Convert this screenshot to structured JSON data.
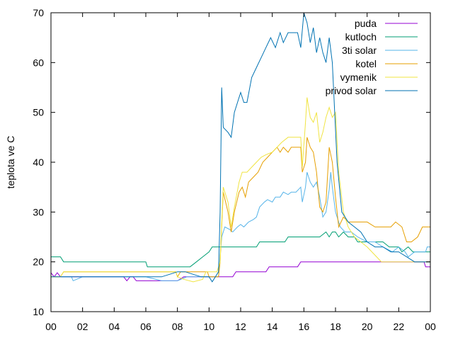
{
  "chart_data": {
    "type": "line",
    "title": "",
    "xlabel": "",
    "ylabel": "teplota ve C",
    "xlim": [
      0,
      24
    ],
    "ylim": [
      10,
      70
    ],
    "grid": false,
    "legend_position": "top-right",
    "x_ticks": [
      "00",
      "02",
      "04",
      "06",
      "08",
      "10",
      "12",
      "14",
      "16",
      "18",
      "20",
      "22",
      "00"
    ],
    "y_ticks": [
      "10",
      "20",
      "30",
      "40",
      "50",
      "60",
      "70"
    ],
    "series": [
      {
        "name": "puda",
        "color": "#9400d3",
        "points": [
          [
            0,
            17.8
          ],
          [
            0.2,
            17.0
          ],
          [
            0.4,
            17.8
          ],
          [
            0.6,
            17.0
          ],
          [
            1,
            17.0
          ],
          [
            3,
            17.0
          ],
          [
            4.6,
            17.0
          ],
          [
            4.8,
            16.2
          ],
          [
            5,
            17.0
          ],
          [
            5.2,
            17.0
          ],
          [
            5.4,
            16.2
          ],
          [
            6,
            16.2
          ],
          [
            7,
            16.2
          ],
          [
            8,
            16.2
          ],
          [
            8.4,
            17.0
          ],
          [
            9,
            17.0
          ],
          [
            10,
            17.0
          ],
          [
            11,
            17.0
          ],
          [
            11.5,
            17.0
          ],
          [
            11.7,
            18.0
          ],
          [
            13,
            18.0
          ],
          [
            13.6,
            18.0
          ],
          [
            13.8,
            19.0
          ],
          [
            15,
            19.0
          ],
          [
            15.6,
            19.0
          ],
          [
            15.8,
            20.0
          ],
          [
            18,
            20.0
          ],
          [
            20,
            20.0
          ],
          [
            21.7,
            20.0
          ],
          [
            23.6,
            20.0
          ],
          [
            23.7,
            19.0
          ],
          [
            24,
            19.0
          ]
        ]
      },
      {
        "name": "kutloch",
        "color": "#009e73",
        "points": [
          [
            0,
            21.0
          ],
          [
            0.6,
            21.0
          ],
          [
            0.8,
            20.0
          ],
          [
            5,
            20.0
          ],
          [
            6,
            20.0
          ],
          [
            6.1,
            19.0
          ],
          [
            8,
            19.0
          ],
          [
            8.8,
            19.0
          ],
          [
            9.2,
            20.0
          ],
          [
            9.6,
            21.0
          ],
          [
            10,
            22.0
          ],
          [
            10.2,
            23.0
          ],
          [
            11,
            23.0
          ],
          [
            12,
            23.0
          ],
          [
            13,
            23.0
          ],
          [
            13.2,
            24.0
          ],
          [
            14,
            24.0
          ],
          [
            14.8,
            24.0
          ],
          [
            15,
            25.0
          ],
          [
            16,
            25.0
          ],
          [
            17,
            25.0
          ],
          [
            17.4,
            26.0
          ],
          [
            17.6,
            25.0
          ],
          [
            17.8,
            26.0
          ],
          [
            18,
            26.0
          ],
          [
            18.2,
            25.0
          ],
          [
            18.5,
            26.0
          ],
          [
            18.8,
            25.0
          ],
          [
            19.2,
            25.0
          ],
          [
            19.4,
            24.0
          ],
          [
            20,
            24.0
          ],
          [
            21,
            24.0
          ],
          [
            21.4,
            23.0
          ],
          [
            22,
            23.0
          ],
          [
            22.2,
            22.0
          ],
          [
            22.6,
            23.0
          ],
          [
            22.9,
            22.0
          ],
          [
            23.3,
            22.0
          ],
          [
            23.5,
            22.0
          ],
          [
            24,
            22.0
          ]
        ]
      },
      {
        "name": "3ti solar",
        "color": "#56b4e9",
        "points": [
          [
            0,
            17.0
          ],
          [
            1.3,
            17.0
          ],
          [
            1.4,
            16.2
          ],
          [
            2,
            17.0
          ],
          [
            3,
            17.0
          ],
          [
            4,
            17.0
          ],
          [
            5,
            17.0
          ],
          [
            6,
            17.0
          ],
          [
            7,
            16.2
          ],
          [
            8,
            16.2
          ],
          [
            8.6,
            17.0
          ],
          [
            9,
            17.0
          ],
          [
            10,
            17.0
          ],
          [
            10.6,
            17.0
          ],
          [
            10.8,
            25.0
          ],
          [
            11,
            27.0
          ],
          [
            11.3,
            26.5
          ],
          [
            11.5,
            26.0
          ],
          [
            11.8,
            27.0
          ],
          [
            12,
            27.5
          ],
          [
            12.2,
            27.0
          ],
          [
            12.5,
            28.0
          ],
          [
            12.8,
            28.5
          ],
          [
            13,
            29.0
          ],
          [
            13.2,
            31.0
          ],
          [
            13.5,
            32.0
          ],
          [
            13.7,
            32.5
          ],
          [
            14,
            32.0
          ],
          [
            14.2,
            33.0
          ],
          [
            14.5,
            33.0
          ],
          [
            14.7,
            34.0
          ],
          [
            15,
            33.5
          ],
          [
            15.2,
            34.0
          ],
          [
            15.5,
            34.0
          ],
          [
            15.8,
            35.0
          ],
          [
            15.9,
            32.0
          ],
          [
            16.1,
            35.0
          ],
          [
            16.2,
            38.0
          ],
          [
            16.4,
            36.0
          ],
          [
            16.6,
            35.0
          ],
          [
            16.8,
            36.0
          ],
          [
            17,
            33.0
          ],
          [
            17.2,
            29.0
          ],
          [
            17.4,
            30.0
          ],
          [
            17.6,
            34.5
          ],
          [
            17.7,
            38.0
          ],
          [
            17.8,
            35.0
          ],
          [
            18,
            30.0
          ],
          [
            18.3,
            27.0
          ],
          [
            18.6,
            26.0
          ],
          [
            19,
            26.0
          ],
          [
            19.4,
            25.0
          ],
          [
            20,
            24.0
          ],
          [
            20.5,
            24.0
          ],
          [
            21,
            23.0
          ],
          [
            21.6,
            22.0
          ],
          [
            22,
            23.0
          ],
          [
            22.4,
            22.0
          ],
          [
            22.6,
            21.0
          ],
          [
            23,
            22.0
          ],
          [
            23.4,
            22.0
          ],
          [
            23.7,
            22.0
          ],
          [
            23.8,
            23.0
          ],
          [
            24,
            23.0
          ]
        ]
      },
      {
        "name": "kotel",
        "color": "#e69f00",
        "points": [
          [
            0,
            17.0
          ],
          [
            0.6,
            17.0
          ],
          [
            0.8,
            18.0
          ],
          [
            4,
            18.0
          ],
          [
            7,
            18.0
          ],
          [
            7.9,
            18.0
          ],
          [
            8,
            17.0
          ],
          [
            8.2,
            18.0
          ],
          [
            9,
            18.0
          ],
          [
            9.9,
            18.0
          ],
          [
            10,
            17.0
          ],
          [
            10.6,
            17.0
          ],
          [
            10.7,
            20.0
          ],
          [
            10.9,
            34.0
          ],
          [
            11.2,
            30.0
          ],
          [
            11.4,
            26.0
          ],
          [
            11.6,
            30.0
          ],
          [
            11.9,
            34.0
          ],
          [
            12.1,
            35.0
          ],
          [
            12.3,
            33.0
          ],
          [
            12.5,
            36.0
          ],
          [
            12.8,
            37.0
          ],
          [
            13.1,
            38.0
          ],
          [
            13.4,
            40.0
          ],
          [
            13.7,
            41.0
          ],
          [
            14,
            42.0
          ],
          [
            14.3,
            43.0
          ],
          [
            14.5,
            42.0
          ],
          [
            14.7,
            43.0
          ],
          [
            15,
            42.0
          ],
          [
            15.2,
            43.0
          ],
          [
            15.5,
            43.0
          ],
          [
            15.8,
            43.0
          ],
          [
            15.9,
            38.0
          ],
          [
            16.1,
            40.0
          ],
          [
            16.2,
            45.0
          ],
          [
            16.4,
            43.0
          ],
          [
            16.6,
            42.0
          ],
          [
            16.8,
            38.0
          ],
          [
            17,
            31.0
          ],
          [
            17.2,
            30.0
          ],
          [
            17.4,
            32.0
          ],
          [
            17.6,
            43.0
          ],
          [
            17.8,
            40.0
          ],
          [
            18,
            33.0
          ],
          [
            18.2,
            27.0
          ],
          [
            18.5,
            29.0
          ],
          [
            18.8,
            28.0
          ],
          [
            19,
            28.0
          ],
          [
            19.5,
            28.0
          ],
          [
            20,
            28.0
          ],
          [
            20.5,
            27.0
          ],
          [
            21,
            27.0
          ],
          [
            21.5,
            27.0
          ],
          [
            21.8,
            28.0
          ],
          [
            22.2,
            27.0
          ],
          [
            22.5,
            24.0
          ],
          [
            22.8,
            24.0
          ],
          [
            23.2,
            25.0
          ],
          [
            23.5,
            27.0
          ],
          [
            24,
            27.0
          ]
        ]
      },
      {
        "name": "vymenik",
        "color": "#f0e442",
        "points": [
          [
            0,
            17.0
          ],
          [
            0.6,
            17.0
          ],
          [
            0.8,
            18.0
          ],
          [
            4,
            18.0
          ],
          [
            7,
            18.0
          ],
          [
            7.9,
            18.0
          ],
          [
            8,
            17.0
          ],
          [
            8.4,
            16.5
          ],
          [
            9,
            16.0
          ],
          [
            9.6,
            16.5
          ],
          [
            9.8,
            18.0
          ],
          [
            10.5,
            18.0
          ],
          [
            10.7,
            20.0
          ],
          [
            10.9,
            35.0
          ],
          [
            11.2,
            32.0
          ],
          [
            11.4,
            27.0
          ],
          [
            11.6,
            31.0
          ],
          [
            11.9,
            36.0
          ],
          [
            12.1,
            38.0
          ],
          [
            12.4,
            38.0
          ],
          [
            12.7,
            39.0
          ],
          [
            13,
            40.0
          ],
          [
            13.3,
            41.0
          ],
          [
            13.6,
            41.5
          ],
          [
            14,
            42.0
          ],
          [
            14.3,
            43.0
          ],
          [
            14.6,
            44.0
          ],
          [
            15,
            45.0
          ],
          [
            15.5,
            45.0
          ],
          [
            15.8,
            45.0
          ],
          [
            15.9,
            39.0
          ],
          [
            16.1,
            48.0
          ],
          [
            16.2,
            53.0
          ],
          [
            16.4,
            49.0
          ],
          [
            16.6,
            48.0
          ],
          [
            16.8,
            50.0
          ],
          [
            17,
            44.0
          ],
          [
            17.2,
            46.0
          ],
          [
            17.4,
            49.0
          ],
          [
            17.6,
            51.0
          ],
          [
            17.8,
            49.0
          ],
          [
            18,
            50.0
          ],
          [
            18.2,
            38.0
          ],
          [
            18.5,
            30.0
          ],
          [
            18.8,
            27.0
          ],
          [
            19.2,
            25.0
          ],
          [
            19.6,
            24.0
          ],
          [
            20,
            23.0
          ],
          [
            20.3,
            22.0
          ],
          [
            20.6,
            21.0
          ],
          [
            20.9,
            20.0
          ],
          [
            24,
            20.0
          ]
        ]
      },
      {
        "name": "privod solar",
        "color": "#0072b2",
        "points": [
          [
            0,
            17.0
          ],
          [
            2,
            17.0
          ],
          [
            4,
            17.0
          ],
          [
            6,
            17.0
          ],
          [
            7,
            17.0
          ],
          [
            7.5,
            17.5
          ],
          [
            8,
            18.0
          ],
          [
            8.5,
            18.0
          ],
          [
            9,
            17.5
          ],
          [
            9.5,
            17.0
          ],
          [
            10,
            17.0
          ],
          [
            10.2,
            16.0
          ],
          [
            10.4,
            17.0
          ],
          [
            10.6,
            18.0
          ],
          [
            10.7,
            30.0
          ],
          [
            10.8,
            55.0
          ],
          [
            10.9,
            47.0
          ],
          [
            11.2,
            46.0
          ],
          [
            11.4,
            45.0
          ],
          [
            11.6,
            50.0
          ],
          [
            12,
            54.0
          ],
          [
            12.2,
            52.0
          ],
          [
            12.4,
            52.0
          ],
          [
            12.7,
            57.0
          ],
          [
            13,
            59.0
          ],
          [
            13.3,
            61.0
          ],
          [
            13.6,
            63.0
          ],
          [
            13.9,
            65.0
          ],
          [
            14.2,
            63.0
          ],
          [
            14.5,
            66.0
          ],
          [
            14.7,
            64.0
          ],
          [
            15,
            66.0
          ],
          [
            15.3,
            66.0
          ],
          [
            15.6,
            66.0
          ],
          [
            15.8,
            63.0
          ],
          [
            16,
            70.0
          ],
          [
            16.2,
            68.0
          ],
          [
            16.4,
            64.0
          ],
          [
            16.6,
            67.0
          ],
          [
            16.8,
            62.0
          ],
          [
            17,
            65.0
          ],
          [
            17.2,
            62.0
          ],
          [
            17.4,
            60.0
          ],
          [
            17.6,
            65.0
          ],
          [
            17.8,
            60.0
          ],
          [
            18.1,
            40.0
          ],
          [
            18.4,
            30.0
          ],
          [
            18.8,
            28.0
          ],
          [
            19.2,
            27.0
          ],
          [
            19.6,
            26.0
          ],
          [
            20,
            24.0
          ],
          [
            20.5,
            23.0
          ],
          [
            21,
            23.0
          ],
          [
            21.5,
            22.0
          ],
          [
            22,
            22.0
          ],
          [
            22.5,
            21.0
          ],
          [
            23,
            20.0
          ],
          [
            23.5,
            20.0
          ],
          [
            24,
            20.0
          ]
        ]
      }
    ]
  }
}
